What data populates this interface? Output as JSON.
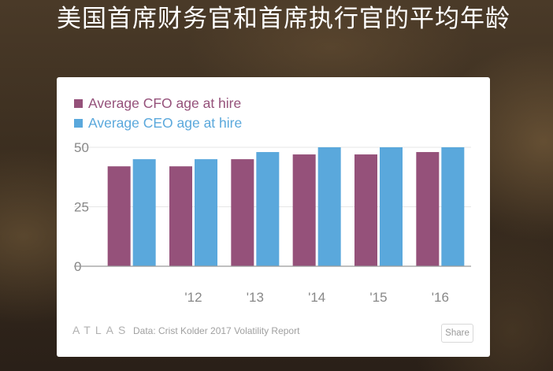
{
  "page": {
    "title": "美国首席财务官和首席执行官的平均年龄"
  },
  "chart_data": {
    "type": "bar",
    "categories": [
      "",
      "'12",
      "'13",
      "'14",
      "'15",
      "'16"
    ],
    "series": [
      {
        "name": "Average CFO age at hire",
        "color": "#95517a",
        "values": [
          42,
          42,
          45,
          47,
          47,
          48
        ]
      },
      {
        "name": "Average CEO age at hire",
        "color": "#5aa8dc",
        "values": [
          45,
          45,
          48,
          50,
          50,
          50
        ]
      }
    ],
    "yticks": [
      0,
      25,
      50
    ],
    "ylim": [
      0,
      50
    ],
    "legend_position": "top-left",
    "grid": true,
    "title": "",
    "xlabel": "",
    "ylabel": ""
  },
  "footer": {
    "logo": "ATLAS",
    "source": "Data:  Crist Kolder 2017 Volatility Report",
    "share_label": "Share"
  }
}
